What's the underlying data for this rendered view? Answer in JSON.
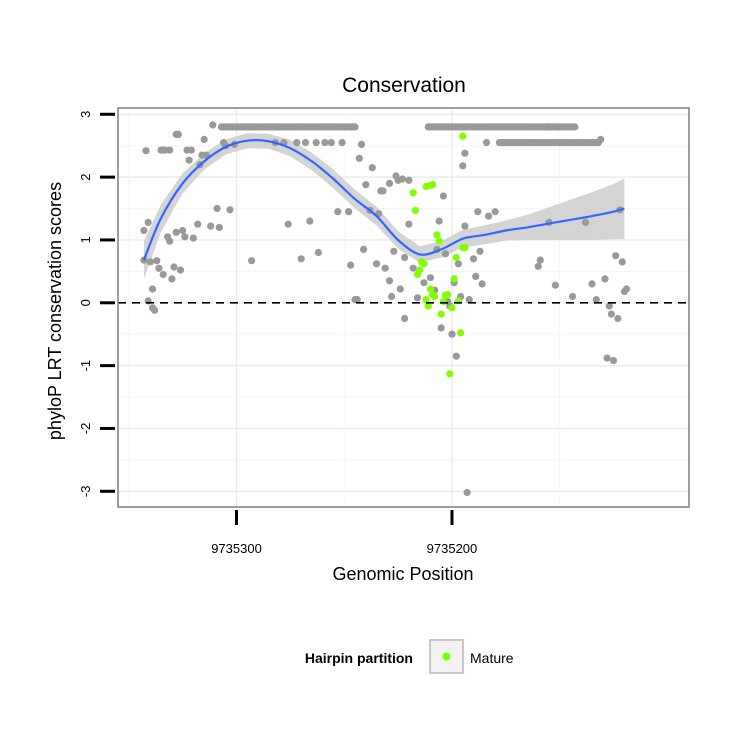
{
  "chart_data": {
    "type": "scatter",
    "title": "Conservation",
    "xlabel": "Genomic Position",
    "ylabel": "phyloP LRT conservation scores",
    "x_reversed": true,
    "xlim": [
      9735355,
      9735090
    ],
    "ylim": [
      -3.25,
      3.1
    ],
    "x_ticks": [
      9735300,
      9735200
    ],
    "x_tick_labels": [
      "9735300",
      "9735200"
    ],
    "y_ticks": [
      -3,
      -2,
      -1,
      0,
      1,
      2,
      3
    ],
    "y_tick_labels": [
      "-3",
      "-2",
      "-1",
      "0",
      "1",
      "2",
      "3"
    ],
    "reference_line": {
      "y": 0,
      "style": "dashed"
    },
    "legend": {
      "title": "Hairpin partition",
      "entries": [
        "Mature"
      ],
      "placement": "bottom"
    },
    "colors": {
      "other": "#999999",
      "mature": "#7fff00",
      "smooth": "#3366ff",
      "band": "#cccccc"
    },
    "grid": true,
    "series": [
      {
        "kind": "other",
        "points": [
          [
            9735343,
            1.15
          ],
          [
            9735343,
            0.68
          ],
          [
            9735342,
            2.42
          ],
          [
            9735341,
            1.28
          ],
          [
            9735341,
            0.03
          ],
          [
            9735340,
            0.65
          ],
          [
            9735339,
            -0.08
          ],
          [
            9735338,
            -0.12
          ],
          [
            9735339,
            0.22
          ],
          [
            9735337,
            0.67
          ],
          [
            9735336,
            0.55
          ],
          [
            9735335,
            2.43
          ],
          [
            9735334,
            2.43
          ],
          [
            9735334,
            0.45
          ],
          [
            9735333,
            2.43
          ],
          [
            9735332,
            1.05
          ],
          [
            9735331,
            2.43
          ],
          [
            9735331,
            0.98
          ],
          [
            9735330,
            0.38
          ],
          [
            9735329,
            0.57
          ],
          [
            9735328,
            1.12
          ],
          [
            9735328,
            2.68
          ],
          [
            9735327,
            2.68
          ],
          [
            9735326,
            0.52
          ],
          [
            9735325,
            1.15
          ],
          [
            9735324,
            1.05
          ],
          [
            9735323,
            2.43
          ],
          [
            9735322,
            2.27
          ],
          [
            9735321,
            2.43
          ],
          [
            9735320,
            1.03
          ],
          [
            9735318,
            1.25
          ],
          [
            9735317,
            2.2
          ],
          [
            9735316,
            2.35
          ],
          [
            9735315,
            2.6
          ],
          [
            9735314,
            2.35
          ],
          [
            9735312,
            1.22
          ],
          [
            9735311,
            2.83
          ],
          [
            9735309,
            1.5
          ],
          [
            9735308,
            1.2
          ],
          [
            9735306,
            2.55
          ],
          [
            9735305,
            2.5
          ],
          [
            9735303,
            1.48
          ],
          [
            9735301,
            2.52
          ],
          [
            9735293,
            0.67
          ],
          [
            9735282,
            2.55
          ],
          [
            9735278,
            2.55
          ],
          [
            9735276,
            1.25
          ],
          [
            9735272,
            2.55
          ],
          [
            9735270,
            0.7
          ],
          [
            9735268,
            2.55
          ],
          [
            9735266,
            1.3
          ],
          [
            9735263,
            2.55
          ],
          [
            9735262,
            0.8
          ],
          [
            9735259,
            2.55
          ],
          [
            9735256,
            2.55
          ],
          [
            9735253,
            1.45
          ],
          [
            9735251,
            2.55
          ],
          [
            9735248,
            1.45
          ],
          [
            9735247,
            0.6
          ],
          [
            9735245,
            0.05
          ],
          [
            9735244,
            0.05
          ],
          [
            9735243,
            2.3
          ],
          [
            9735242,
            2.52
          ],
          [
            9735241,
            0.85
          ],
          [
            9735240,
            1.88
          ],
          [
            9735238,
            1.47
          ],
          [
            9735237,
            2.15
          ],
          [
            9735235,
            0.62
          ],
          [
            9735234,
            1.42
          ],
          [
            9735233,
            1.78
          ],
          [
            9735232,
            1.78
          ],
          [
            9735231,
            0.55
          ],
          [
            9735229,
            1.9
          ],
          [
            9735229,
            0.35
          ],
          [
            9735228,
            0.1
          ],
          [
            9735227,
            0.82
          ],
          [
            9735226,
            2.02
          ],
          [
            9735225,
            1.95
          ],
          [
            9735224,
            0.22
          ],
          [
            9735223,
            1.97
          ],
          [
            9735222,
            0.72
          ],
          [
            9735222,
            -0.25
          ],
          [
            9735220,
            1.95
          ],
          [
            9735220,
            1.25
          ],
          [
            9735218,
            0.55
          ],
          [
            9735216,
            0.08
          ],
          [
            9735213,
            0.32
          ],
          [
            9735210,
            0.4
          ],
          [
            9735208,
            0.2
          ],
          [
            9735207,
            0.85
          ],
          [
            9735206,
            1.3
          ],
          [
            9735205,
            -0.4
          ],
          [
            9735204,
            1.7
          ],
          [
            9735203,
            0.78
          ],
          [
            9735202,
            0.02
          ],
          [
            9735201,
            -0.05
          ],
          [
            9735200,
            -0.5
          ],
          [
            9735199,
            0.32
          ],
          [
            9735198,
            -0.85
          ],
          [
            9735197,
            0.62
          ],
          [
            9735196,
            0.1
          ],
          [
            9735194,
            1.22
          ],
          [
            9735195,
            2.18
          ],
          [
            9735194,
            2.38
          ],
          [
            9735193,
            -3.02
          ],
          [
            9735192,
            0.05
          ],
          [
            9735190,
            0.7
          ],
          [
            9735189,
            0.42
          ],
          [
            9735188,
            1.45
          ],
          [
            9735187,
            0.82
          ],
          [
            9735186,
            0.3
          ],
          [
            9735184,
            2.55
          ],
          [
            9735183,
            1.38
          ],
          [
            9735180,
            1.45
          ],
          [
            9735176,
            2.55
          ],
          [
            9735170,
            2.55
          ],
          [
            9735165,
            2.55
          ],
          [
            9735160,
            0.58
          ],
          [
            9735159,
            0.68
          ],
          [
            9735155,
            1.28
          ],
          [
            9735152,
            0.28
          ],
          [
            9735148,
            2.55
          ],
          [
            9735144,
            0.1
          ],
          [
            9735141,
            2.55
          ],
          [
            9735138,
            1.28
          ],
          [
            9735135,
            0.3
          ],
          [
            9735133,
            0.05
          ],
          [
            9735131,
            2.6
          ],
          [
            9735129,
            0.38
          ],
          [
            9735128,
            -0.88
          ],
          [
            9735127,
            -0.05
          ],
          [
            9735126,
            -0.18
          ],
          [
            9735125,
            -0.92
          ],
          [
            9735124,
            0.75
          ],
          [
            9735123,
            -0.25
          ],
          [
            9735122,
            1.48
          ],
          [
            9735121,
            0.65
          ],
          [
            9735120,
            0.18
          ],
          [
            9735119,
            0.22
          ]
        ],
        "runs": [
          [
            9735307,
            9735245,
            2.8
          ],
          [
            9735211,
            9735155,
            2.8
          ],
          [
            9735178,
            9735132,
            2.55
          ],
          [
            9735156,
            9735143,
            2.8
          ]
        ]
      },
      {
        "kind": "mature",
        "name": "Mature",
        "points": [
          [
            9735195,
            2.65
          ],
          [
            9735218,
            1.75
          ],
          [
            9735217,
            1.47
          ],
          [
            9735216,
            0.45
          ],
          [
            9735215,
            0.52
          ],
          [
            9735214,
            0.65
          ],
          [
            9735213,
            0.62
          ],
          [
            9735212,
            1.85
          ],
          [
            9735210,
            1.87
          ],
          [
            9735209,
            1.88
          ],
          [
            9735212,
            0.05
          ],
          [
            9735211,
            -0.05
          ],
          [
            9735210,
            0.22
          ],
          [
            9735209,
            0.13
          ],
          [
            9735208,
            0.1
          ],
          [
            9735207,
            1.08
          ],
          [
            9735206,
            0.98
          ],
          [
            9735205,
            -0.18
          ],
          [
            9735204,
            0.02
          ],
          [
            9735203,
            0.12
          ],
          [
            9735202,
            0.13
          ],
          [
            9735201,
            -1.13
          ],
          [
            9735200,
            -0.08
          ],
          [
            9735199,
            0.38
          ],
          [
            9735198,
            0.72
          ],
          [
            9735197,
            0.03
          ],
          [
            9735196,
            -0.48
          ],
          [
            9735195,
            0.88
          ],
          [
            9735194,
            0.88
          ]
        ]
      }
    ],
    "smooth": {
      "x": [
        9735343,
        9735335,
        9735325,
        9735315,
        9735305,
        9735295,
        9735285,
        9735275,
        9735265,
        9735255,
        9735245,
        9735235,
        9735225,
        9735215,
        9735205,
        9735195,
        9735185,
        9735175,
        9735165,
        9735155,
        9735145,
        9735135,
        9735125,
        9735120
      ],
      "y": [
        0.68,
        1.35,
        1.9,
        2.25,
        2.48,
        2.58,
        2.57,
        2.46,
        2.25,
        1.97,
        1.65,
        1.38,
        1.0,
        0.77,
        0.85,
        1.02,
        1.08,
        1.15,
        1.2,
        1.26,
        1.32,
        1.38,
        1.45,
        1.5
      ],
      "band_half_width": [
        0.3,
        0.22,
        0.16,
        0.13,
        0.12,
        0.12,
        0.12,
        0.13,
        0.14,
        0.15,
        0.15,
        0.15,
        0.14,
        0.13,
        0.13,
        0.14,
        0.15,
        0.16,
        0.2,
        0.26,
        0.32,
        0.38,
        0.44,
        0.48
      ]
    }
  }
}
